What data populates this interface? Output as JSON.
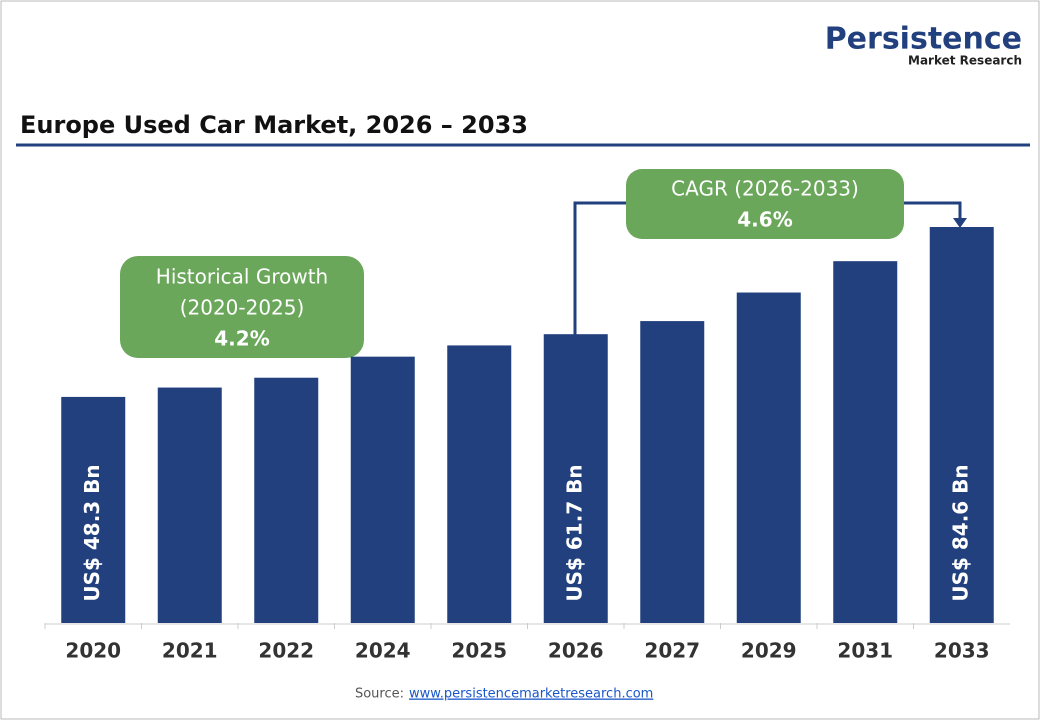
{
  "logo": {
    "name": "Persistence",
    "tagline": "Market Research"
  },
  "chart_data": {
    "type": "bar",
    "title": "Europe Used Car Market, 2026 – 2033",
    "categories": [
      "2020",
      "2021",
      "2022",
      "2024",
      "2025",
      "2026",
      "2027",
      "2029",
      "2031",
      "2033"
    ],
    "values": [
      48.3,
      50.3,
      52.4,
      56.9,
      59.3,
      61.7,
      64.5,
      70.6,
      77.3,
      84.6
    ],
    "value_labels": [
      "US$ 48.3 Bn",
      null,
      null,
      null,
      null,
      "US$ 61.7 Bn",
      null,
      null,
      null,
      "US$ 84.6 Bn"
    ],
    "color": "#21407d",
    "annotations": {
      "historical": {
        "label": "Historical Growth",
        "period": "(2020-2025)",
        "value": "4.2%"
      },
      "cagr": {
        "label": "CAGR (2026-2033)",
        "value": "4.6%"
      }
    },
    "source": {
      "label": "Source:",
      "link": "www.persistencemarketresearch.com"
    }
  }
}
